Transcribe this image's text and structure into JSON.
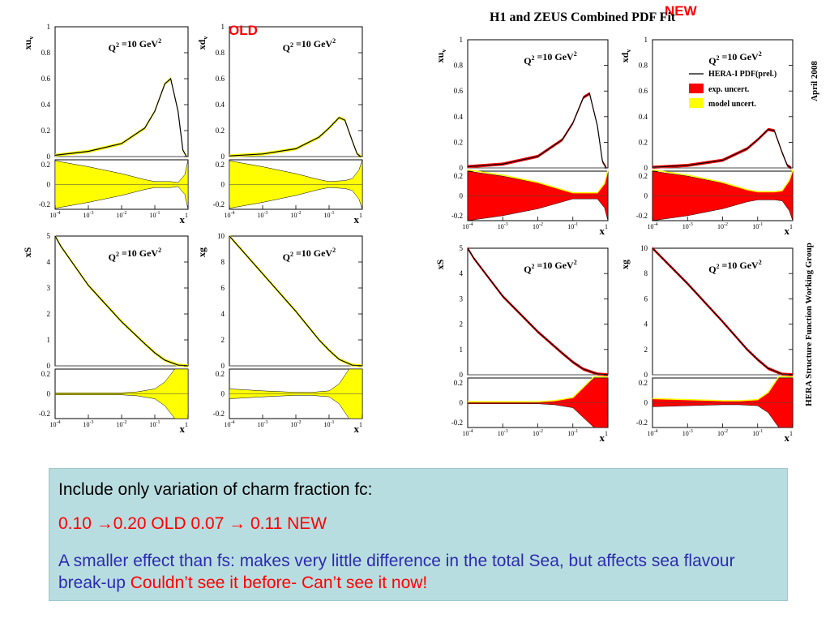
{
  "labels": {
    "old_tag": "OLD",
    "new_tag": "NEW",
    "figure_title": "H1 and ZEUS Combined PDF Fit",
    "date_label": "April 2008",
    "group_label": "HERA Structure Function Working Group"
  },
  "legend": {
    "central": "HERA-I PDF(prel.)",
    "exp": "exp. uncert.",
    "model": "model uncert."
  },
  "colors": {
    "central": "#000000",
    "band_old": "#ffff00",
    "band_new_exp": "#ff0000",
    "band_new_model": "#ffff00",
    "box_bg": "#b8dde0",
    "text_red": "#ff0000",
    "text_blue": "#2b2bb0"
  },
  "note": {
    "line1": "Include only variation of charm fraction fc:",
    "line2": "0.10 →0.20  OLD  0.07 → 0.11 NEW",
    "line3_blue": "A smaller effect than fs: makes very little difference in the total Sea, but affects sea flavour break-up ",
    "line3_red": "Couldn’t see it before- Can’t see it now!"
  },
  "chart_data": [
    {
      "id": "old-xuv",
      "type": "line",
      "group": "OLD",
      "ylabel": "xu",
      "ylabel_sub": "v",
      "annotation": "Q² =10 GeV²",
      "xscale": "log",
      "xlim": [
        0.0001,
        1
      ],
      "ylim": [
        0,
        1
      ],
      "yticks": [
        "0",
        "0.2",
        "0.4",
        "0.6",
        "0.8",
        "1"
      ],
      "x": [
        0.0001,
        0.001,
        0.01,
        0.05,
        0.1,
        0.2,
        0.3,
        0.5,
        0.7,
        0.9
      ],
      "y": [
        0.01,
        0.04,
        0.1,
        0.22,
        0.35,
        0.56,
        0.6,
        0.35,
        0.05,
        0.0
      ],
      "ratio_ylim": [
        -0.25,
        0.25
      ],
      "ratio_yticks": [
        "-0.2",
        "0",
        "0.2"
      ],
      "ratio_x": [
        0.0001,
        0.001,
        0.01,
        0.05,
        0.1,
        0.3,
        0.5,
        0.8,
        1
      ],
      "ratio_band": [
        0.24,
        0.18,
        0.11,
        0.05,
        0.03,
        0.03,
        0.02,
        0.1,
        0.25
      ],
      "xticks": [
        "10-4",
        "10-3",
        "10-2",
        "10-1",
        "1"
      ],
      "xlabel": "x"
    },
    {
      "id": "old-xdv",
      "type": "line",
      "group": "OLD",
      "ylabel": "xd",
      "ylabel_sub": "v",
      "annotation": "Q² =10 GeV²",
      "xscale": "log",
      "xlim": [
        0.0001,
        1
      ],
      "ylim": [
        0,
        1
      ],
      "yticks": [
        "0",
        "0.2",
        "0.4",
        "0.6",
        "0.8",
        "1"
      ],
      "x": [
        0.0001,
        0.001,
        0.01,
        0.05,
        0.1,
        0.2,
        0.3,
        0.5,
        0.7,
        0.9
      ],
      "y": [
        0.005,
        0.02,
        0.06,
        0.15,
        0.22,
        0.3,
        0.28,
        0.12,
        0.02,
        0.0
      ],
      "ratio_ylim": [
        -0.25,
        0.25
      ],
      "ratio_yticks": [
        "-0.2",
        "0",
        "0.2"
      ],
      "ratio_x": [
        0.0001,
        0.001,
        0.01,
        0.05,
        0.1,
        0.3,
        0.5,
        0.8,
        1
      ],
      "ratio_band": [
        0.24,
        0.18,
        0.11,
        0.05,
        0.03,
        0.04,
        0.06,
        0.15,
        0.25
      ],
      "xticks": [
        "10-4",
        "10-3",
        "10-2",
        "10-1",
        "1"
      ],
      "xlabel": "x"
    },
    {
      "id": "old-xs",
      "type": "line",
      "group": "OLD",
      "ylabel": "xS",
      "annotation": "Q² =10 GeV²",
      "xscale": "log",
      "xlim": [
        0.0001,
        1
      ],
      "ylim": [
        0,
        5
      ],
      "yticks": [
        "0",
        "1",
        "2",
        "3",
        "4",
        "5"
      ],
      "x": [
        0.0001,
        0.00015,
        0.001,
        0.01,
        0.05,
        0.1,
        0.2,
        0.5,
        1
      ],
      "y": [
        5.0,
        4.6,
        3.1,
        1.7,
        0.85,
        0.5,
        0.22,
        0.03,
        0
      ],
      "ratio_ylim": [
        -0.25,
        0.25
      ],
      "ratio_yticks": [
        "-0.2",
        "0",
        "0.2"
      ],
      "ratio_x": [
        0.0001,
        0.001,
        0.01,
        0.03,
        0.1,
        0.2,
        0.4,
        1
      ],
      "ratio_band": [
        0.01,
        0.01,
        0.01,
        0.02,
        0.05,
        0.12,
        0.25,
        0.25
      ],
      "xticks": [
        "10-4",
        "10-3",
        "10-2",
        "10-1",
        "1"
      ],
      "xlabel": "x"
    },
    {
      "id": "old-xg",
      "type": "line",
      "group": "OLD",
      "ylabel": "xg",
      "annotation": "Q² =10 GeV²",
      "xscale": "log",
      "xlim": [
        0.0001,
        1
      ],
      "ylim": [
        0,
        10
      ],
      "yticks": [
        "0",
        "2",
        "4",
        "6",
        "8",
        "10"
      ],
      "x": [
        0.0001,
        0.001,
        0.01,
        0.05,
        0.1,
        0.2,
        0.5,
        1
      ],
      "y": [
        10,
        7.1,
        4.2,
        2.0,
        1.2,
        0.5,
        0.05,
        0
      ],
      "ratio_ylim": [
        -0.25,
        0.25
      ],
      "ratio_yticks": [
        "-0.2",
        "0",
        "0.2"
      ],
      "ratio_x": [
        0.0001,
        0.001,
        0.01,
        0.03,
        0.1,
        0.2,
        0.4,
        1
      ],
      "ratio_band": [
        0.05,
        0.03,
        0.015,
        0.015,
        0.03,
        0.1,
        0.25,
        0.25
      ],
      "xticks": [
        "10-4",
        "10-3",
        "10-2",
        "10-1",
        "1"
      ],
      "xlabel": "x"
    },
    {
      "id": "new-xuv",
      "type": "line",
      "group": "NEW",
      "ylabel": "xu",
      "ylabel_sub": "v",
      "annotation": "Q² =10 GeV²",
      "xscale": "log",
      "xlim": [
        0.0001,
        1
      ],
      "ylim": [
        0,
        1
      ],
      "yticks": [
        "0",
        "0.2",
        "0.4",
        "0.6",
        "0.8",
        "1"
      ],
      "x": [
        0.0001,
        0.001,
        0.01,
        0.05,
        0.1,
        0.2,
        0.3,
        0.5,
        0.7,
        0.9
      ],
      "y": [
        0.01,
        0.03,
        0.09,
        0.22,
        0.35,
        0.55,
        0.58,
        0.33,
        0.05,
        0.0
      ],
      "ratio_ylim": [
        -0.25,
        0.25
      ],
      "ratio_yticks": [
        "-0.2",
        "0",
        "0.2"
      ],
      "ratio_x": [
        0.0001,
        0.001,
        0.01,
        0.05,
        0.1,
        0.3,
        0.5,
        0.8,
        1
      ],
      "ratio_band": [
        0.25,
        0.2,
        0.13,
        0.06,
        0.03,
        0.03,
        0.03,
        0.12,
        0.25
      ],
      "xticks": [
        "10-4",
        "10-3",
        "10-2",
        "10-1",
        "1"
      ],
      "xlabel": "x"
    },
    {
      "id": "new-xdv",
      "type": "line",
      "group": "NEW",
      "ylabel": "xd",
      "ylabel_sub": "v",
      "annotation": "Q² =10 GeV²",
      "xscale": "log",
      "xlim": [
        0.0001,
        1
      ],
      "ylim": [
        0,
        1
      ],
      "yticks": [
        "0",
        "0.2",
        "0.4",
        "0.6",
        "0.8",
        "1"
      ],
      "x": [
        0.0001,
        0.001,
        0.01,
        0.05,
        0.1,
        0.2,
        0.3,
        0.5,
        0.7,
        0.9
      ],
      "y": [
        0.005,
        0.02,
        0.06,
        0.15,
        0.22,
        0.3,
        0.29,
        0.12,
        0.02,
        0.0
      ],
      "ratio_ylim": [
        -0.25,
        0.25
      ],
      "ratio_yticks": [
        "-0.2",
        "0",
        "0.2"
      ],
      "ratio_x": [
        0.0001,
        0.001,
        0.01,
        0.05,
        0.1,
        0.3,
        0.5,
        0.8,
        1
      ],
      "ratio_band": [
        0.25,
        0.2,
        0.13,
        0.06,
        0.04,
        0.04,
        0.05,
        0.15,
        0.25
      ],
      "xticks": [
        "10-4",
        "10-3",
        "10-2",
        "10-1",
        "1"
      ],
      "xlabel": "x",
      "legend_shown": true
    },
    {
      "id": "new-xs",
      "type": "line",
      "group": "NEW",
      "ylabel": "xS",
      "annotation": "Q² =10 GeV²",
      "xscale": "log",
      "xlim": [
        0.0001,
        1
      ],
      "ylim": [
        0,
        5
      ],
      "yticks": [
        "0",
        "1",
        "2",
        "3",
        "4",
        "5"
      ],
      "x": [
        0.0001,
        0.00015,
        0.001,
        0.01,
        0.05,
        0.1,
        0.2,
        0.5,
        1
      ],
      "y": [
        5.0,
        4.6,
        3.1,
        1.7,
        0.85,
        0.5,
        0.22,
        0.03,
        0
      ],
      "ratio_ylim": [
        -0.25,
        0.25
      ],
      "ratio_yticks": [
        "-0.2",
        "0",
        "0.2"
      ],
      "ratio_x": [
        0.0001,
        0.001,
        0.01,
        0.03,
        0.1,
        0.2,
        0.4,
        1
      ],
      "ratio_band": [
        0.01,
        0.01,
        0.01,
        0.02,
        0.05,
        0.15,
        0.25,
        0.25
      ],
      "xticks": [
        "10-4",
        "10-3",
        "10-2",
        "10-1",
        "1"
      ],
      "xlabel": "x"
    },
    {
      "id": "new-xg",
      "type": "line",
      "group": "NEW",
      "ylabel": "xg",
      "annotation": "Q² =10 GeV²",
      "xscale": "log",
      "xlim": [
        0.0001,
        1
      ],
      "ylim": [
        0,
        10
      ],
      "yticks": [
        "0",
        "2",
        "4",
        "6",
        "8",
        "10"
      ],
      "x": [
        0.0001,
        0.001,
        0.01,
        0.05,
        0.1,
        0.2,
        0.5,
        1
      ],
      "y": [
        10,
        7.2,
        4.2,
        2.0,
        1.2,
        0.5,
        0.05,
        0
      ],
      "ratio_ylim": [
        -0.25,
        0.25
      ],
      "ratio_yticks": [
        "-0.2",
        "0",
        "0.2"
      ],
      "ratio_x": [
        0.0001,
        0.001,
        0.01,
        0.03,
        0.1,
        0.2,
        0.4,
        1
      ],
      "ratio_band": [
        0.04,
        0.03,
        0.02,
        0.02,
        0.03,
        0.1,
        0.25,
        0.25
      ],
      "xticks": [
        "10-4",
        "10-3",
        "10-2",
        "10-1",
        "1"
      ],
      "xlabel": "x"
    }
  ]
}
